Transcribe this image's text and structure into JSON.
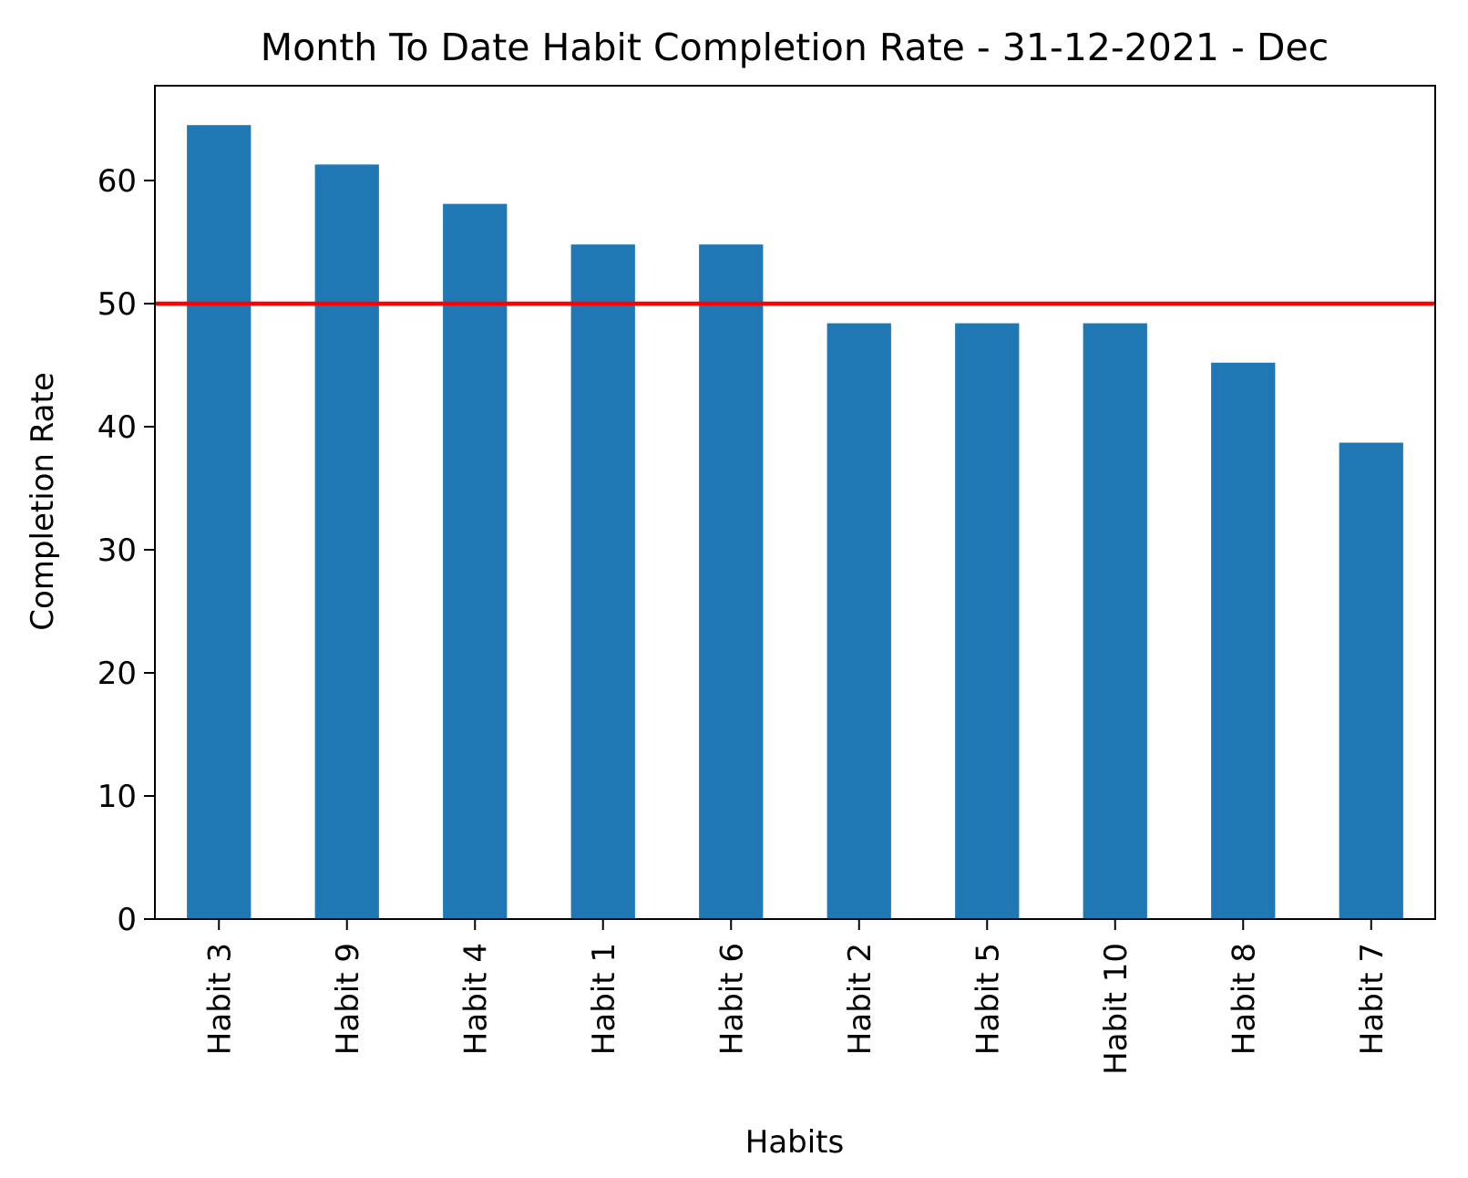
{
  "chart_data": {
    "type": "bar",
    "title": "Month To Date Habit Completion Rate - 31-12-2021 - Dec",
    "xlabel": "Habits",
    "ylabel": "Completion Rate",
    "categories": [
      "Habit 3",
      "Habit 9",
      "Habit 4",
      "Habit 1",
      "Habit 6",
      "Habit 2",
      "Habit 5",
      "Habit 10",
      "Habit 8",
      "Habit 7"
    ],
    "values": [
      64.5,
      61.3,
      58.1,
      54.8,
      54.8,
      48.4,
      48.4,
      48.4,
      45.2,
      38.7
    ],
    "ylim": [
      0,
      67.7
    ],
    "yticks": [
      0,
      10,
      20,
      30,
      40,
      50,
      60
    ],
    "threshold": {
      "value": 50,
      "color": "#ff0000"
    },
    "bar_color": "#1f77b4",
    "grid": false,
    "legend": "none"
  }
}
